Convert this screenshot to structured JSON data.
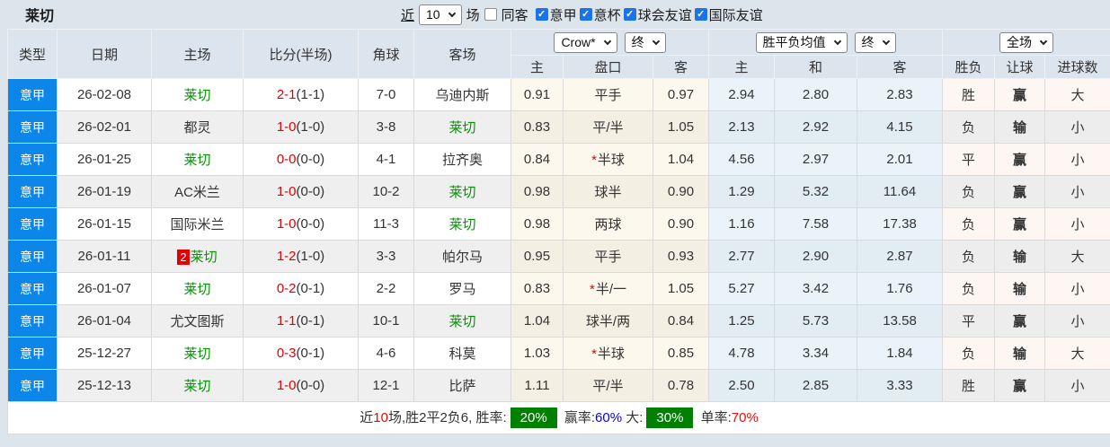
{
  "title": "莱切",
  "toolbar": {
    "near_label": "近",
    "matches_value": "10",
    "matches_label": "场",
    "same_away": {
      "label": "同客",
      "checked": false
    },
    "filters": [
      {
        "label": "意甲",
        "checked": true
      },
      {
        "label": "意杯",
        "checked": true
      },
      {
        "label": "球会友谊",
        "checked": true
      },
      {
        "label": "国际友谊",
        "checked": true
      }
    ]
  },
  "header": {
    "base_columns": [
      "类型",
      "日期",
      "主场",
      "比分(半场)",
      "角球",
      "客场"
    ],
    "groups": [
      {
        "selects": [
          "Crow*",
          "终"
        ],
        "columns": [
          "主",
          "盘口",
          "客"
        ]
      },
      {
        "selects": [
          "胜平负均值",
          "终"
        ],
        "columns": [
          "主",
          "和",
          "客"
        ]
      },
      {
        "selects": [
          "全场"
        ],
        "columns": [
          "胜负",
          "让球",
          "进球数"
        ]
      }
    ]
  },
  "rows": [
    {
      "league": "意甲",
      "date": "26-02-08",
      "home": {
        "text": "莱切",
        "color": "green"
      },
      "score": {
        "main": "2-1",
        "half": "(1-1)"
      },
      "corner": "7-0",
      "away": {
        "text": "乌迪内斯",
        "color": "black"
      },
      "asia": {
        "home": "0.91",
        "line": "平手",
        "star": false,
        "away": "0.97"
      },
      "avg": {
        "home": "2.94",
        "draw": "2.80",
        "away": "2.83"
      },
      "result": {
        "text": "胜",
        "color": "red"
      },
      "handicap": {
        "text": "赢",
        "color": "red"
      },
      "goals": {
        "text": "大",
        "color": "red"
      }
    },
    {
      "league": "意甲",
      "date": "26-02-01",
      "home": {
        "text": "都灵",
        "color": "black"
      },
      "score": {
        "main": "1-0",
        "half": "(1-0)"
      },
      "corner": "3-8",
      "away": {
        "text": "莱切",
        "color": "green"
      },
      "asia": {
        "home": "0.83",
        "line": "平/半",
        "star": false,
        "away": "1.05"
      },
      "avg": {
        "home": "2.13",
        "draw": "2.92",
        "away": "4.15"
      },
      "result": {
        "text": "负",
        "color": "green"
      },
      "handicap": {
        "text": "输",
        "color": "green"
      },
      "goals": {
        "text": "小",
        "color": "green"
      }
    },
    {
      "league": "意甲",
      "date": "26-01-25",
      "home": {
        "text": "莱切",
        "color": "green"
      },
      "score": {
        "main": "0-0",
        "half": "(0-0)"
      },
      "corner": "4-1",
      "away": {
        "text": "拉齐奥",
        "color": "black"
      },
      "asia": {
        "home": "0.84",
        "line": "半球",
        "star": true,
        "away": "1.04"
      },
      "avg": {
        "home": "4.56",
        "draw": "2.97",
        "away": "2.01"
      },
      "result": {
        "text": "平",
        "color": "blue"
      },
      "handicap": {
        "text": "赢",
        "color": "red"
      },
      "goals": {
        "text": "小",
        "color": "green"
      }
    },
    {
      "league": "意甲",
      "date": "26-01-19",
      "home": {
        "text": "AC米兰",
        "color": "black"
      },
      "score": {
        "main": "1-0",
        "half": "(0-0)"
      },
      "corner": "10-2",
      "away": {
        "text": "莱切",
        "color": "green"
      },
      "asia": {
        "home": "0.98",
        "line": "球半",
        "star": false,
        "away": "0.90"
      },
      "avg": {
        "home": "1.29",
        "draw": "5.32",
        "away": "11.64"
      },
      "result": {
        "text": "负",
        "color": "green"
      },
      "handicap": {
        "text": "赢",
        "color": "red"
      },
      "goals": {
        "text": "小",
        "color": "green"
      }
    },
    {
      "league": "意甲",
      "date": "26-01-15",
      "home": {
        "text": "国际米兰",
        "color": "black"
      },
      "score": {
        "main": "1-0",
        "half": "(0-0)"
      },
      "corner": "11-3",
      "away": {
        "text": "莱切",
        "color": "green"
      },
      "asia": {
        "home": "0.98",
        "line": "两球",
        "star": false,
        "away": "0.90"
      },
      "avg": {
        "home": "1.16",
        "draw": "7.58",
        "away": "17.38"
      },
      "result": {
        "text": "负",
        "color": "green"
      },
      "handicap": {
        "text": "赢",
        "color": "red"
      },
      "goals": {
        "text": "小",
        "color": "green"
      }
    },
    {
      "league": "意甲",
      "date": "26-01-11",
      "home": {
        "text": "莱切",
        "color": "green",
        "badge": "2"
      },
      "score": {
        "main": "1-2",
        "half": "(1-0)"
      },
      "corner": "3-3",
      "away": {
        "text": "帕尔马",
        "color": "black"
      },
      "asia": {
        "home": "0.95",
        "line": "平手",
        "star": false,
        "away": "0.93"
      },
      "avg": {
        "home": "2.77",
        "draw": "2.90",
        "away": "2.87"
      },
      "result": {
        "text": "负",
        "color": "green"
      },
      "handicap": {
        "text": "输",
        "color": "green"
      },
      "goals": {
        "text": "大",
        "color": "red"
      }
    },
    {
      "league": "意甲",
      "date": "26-01-07",
      "home": {
        "text": "莱切",
        "color": "green"
      },
      "score": {
        "main": "0-2",
        "half": "(0-1)"
      },
      "corner": "2-2",
      "away": {
        "text": "罗马",
        "color": "black"
      },
      "asia": {
        "home": "0.83",
        "line": "半/一",
        "star": true,
        "away": "1.05"
      },
      "avg": {
        "home": "5.27",
        "draw": "3.42",
        "away": "1.76"
      },
      "result": {
        "text": "负",
        "color": "green"
      },
      "handicap": {
        "text": "输",
        "color": "green"
      },
      "goals": {
        "text": "小",
        "color": "green"
      }
    },
    {
      "league": "意甲",
      "date": "26-01-04",
      "home": {
        "text": "尤文图斯",
        "color": "black"
      },
      "score": {
        "main": "1-1",
        "half": "(0-1)"
      },
      "corner": "10-1",
      "away": {
        "text": "莱切",
        "color": "green"
      },
      "asia": {
        "home": "1.04",
        "line": "球半/两",
        "star": false,
        "away": "0.84"
      },
      "avg": {
        "home": "1.25",
        "draw": "5.73",
        "away": "13.58"
      },
      "result": {
        "text": "平",
        "color": "blue"
      },
      "handicap": {
        "text": "赢",
        "color": "red"
      },
      "goals": {
        "text": "小",
        "color": "green"
      }
    },
    {
      "league": "意甲",
      "date": "25-12-27",
      "home": {
        "text": "莱切",
        "color": "green"
      },
      "score": {
        "main": "0-3",
        "half": "(0-1)"
      },
      "corner": "4-6",
      "away": {
        "text": "科莫",
        "color": "black"
      },
      "asia": {
        "home": "1.03",
        "line": "半球",
        "star": true,
        "away": "0.85"
      },
      "avg": {
        "home": "4.78",
        "draw": "3.34",
        "away": "1.84"
      },
      "result": {
        "text": "负",
        "color": "green"
      },
      "handicap": {
        "text": "输",
        "color": "green"
      },
      "goals": {
        "text": "大",
        "color": "red"
      }
    },
    {
      "league": "意甲",
      "date": "25-12-13",
      "home": {
        "text": "莱切",
        "color": "green"
      },
      "score": {
        "main": "1-0",
        "half": "(0-0)"
      },
      "corner": "12-1",
      "away": {
        "text": "比萨",
        "color": "black"
      },
      "asia": {
        "home": "1.11",
        "line": "平/半",
        "star": false,
        "away": "0.78"
      },
      "avg": {
        "home": "2.50",
        "draw": "2.85",
        "away": "3.33"
      },
      "result": {
        "text": "胜",
        "color": "red"
      },
      "handicap": {
        "text": "赢",
        "color": "red"
      },
      "goals": {
        "text": "小",
        "color": "green"
      }
    }
  ],
  "footer": {
    "segments": [
      {
        "text": "近",
        "style": "plain"
      },
      {
        "text": "10",
        "style": "red"
      },
      {
        "text": "场,胜2平2负6, 胜率:",
        "style": "plain"
      },
      {
        "text": "20%",
        "style": "badge"
      },
      {
        "text": " 赢率:",
        "style": "plain"
      },
      {
        "text": "60%",
        "style": "blue"
      },
      {
        "text": " 大:",
        "style": "plain"
      },
      {
        "text": "30%",
        "style": "badge"
      },
      {
        "text": " 单率:",
        "style": "plain"
      },
      {
        "text": "70%",
        "style": "red"
      }
    ]
  },
  "colors": {
    "league_badge": "#0c86e8",
    "score_red": "#e60000",
    "team_green": "#009600",
    "win_red": "#d10000",
    "draw_blue": "#1414cc",
    "loss_green": "#009600",
    "summary_badge_green": "#008000",
    "header_bg": "#dce4ec"
  }
}
